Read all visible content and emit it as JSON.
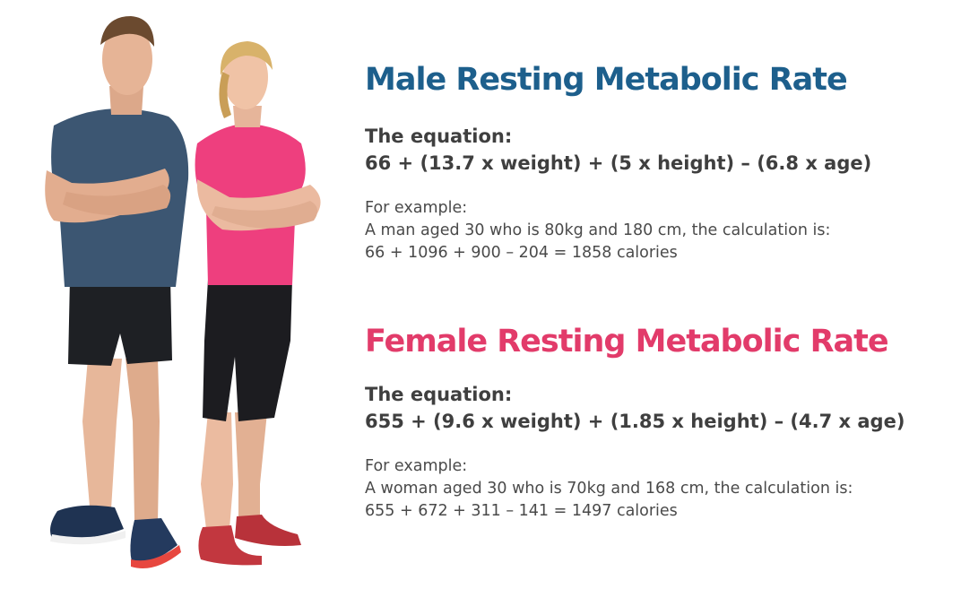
{
  "image": {
    "description": "photo-of-man-and-woman-in-sportswear"
  },
  "male": {
    "heading": "Male Resting Metabolic Rate",
    "equation_label": "The equation:",
    "equation": "66 + (13.7 x weight) + (5 x height) – (6.8 x age)",
    "example_intro": "For example:",
    "example_line": "A man aged 30 who is 80kg and 180 cm, the calculation is:",
    "example_calc": "66 + 1096 + 900 – 204 = 1858 calories",
    "color": "#1d5f8c"
  },
  "female": {
    "heading": "Female Resting Metabolic Rate",
    "equation_label": "The equation:",
    "equation": "655 + (9.6 x weight) + (1.85 x height) – (4.7 x age)",
    "example_intro": "For example:",
    "example_line": "A woman aged 30 who is 70kg and 168 cm, the calculation is:",
    "example_calc": "655 + 672 + 311 – 141 = 1497 calories",
    "color": "#e23b6a"
  }
}
